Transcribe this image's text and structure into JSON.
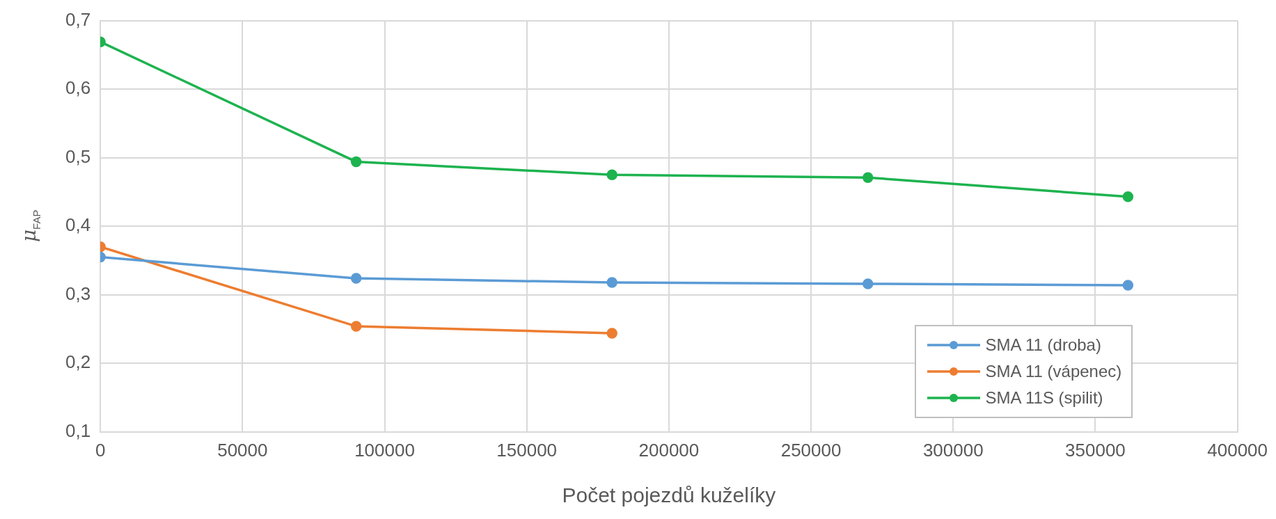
{
  "chart_data": {
    "type": "line",
    "xlabel": "Počet pojezdů kuželíky",
    "ylabel": "μ$_{FAP}$",
    "xlim": [
      0,
      400000
    ],
    "xticks": [
      0,
      50000,
      100000,
      150000,
      200000,
      250000,
      300000,
      350000,
      400000
    ],
    "ylim": [
      0.1,
      0.7
    ],
    "yticks": [
      {
        "value": 0.1,
        "label": "0,1"
      },
      {
        "value": 0.2,
        "label": "0,2"
      },
      {
        "value": 0.3,
        "label": "0,3"
      },
      {
        "value": 0.4,
        "label": "0,4"
      },
      {
        "value": 0.5,
        "label": "0,5"
      },
      {
        "value": 0.6,
        "label": "0,6"
      },
      {
        "value": 0.7,
        "label": "0,7"
      }
    ],
    "grid": true,
    "legend": "bottom right",
    "marker": "circle",
    "line_style": "solid",
    "series": [
      {
        "name": "SMA 11 (droba)",
        "color": "#5b9bd5",
        "x": [
          0,
          90000,
          180000,
          270000,
          361500
        ],
        "values": [
          0.355,
          0.324,
          0.318,
          0.316,
          0.314
        ]
      },
      {
        "name": "SMA 11 (vápenec)",
        "color": "#ed7d31",
        "x": [
          0,
          90000,
          180000
        ],
        "values": [
          0.37,
          0.254,
          0.244
        ]
      },
      {
        "name": "SMA 11S (spilit)",
        "color": "#1db34f",
        "x": [
          0,
          90000,
          180000,
          270000,
          361500
        ],
        "values": [
          0.669,
          0.494,
          0.475,
          0.471,
          0.443
        ]
      }
    ]
  }
}
